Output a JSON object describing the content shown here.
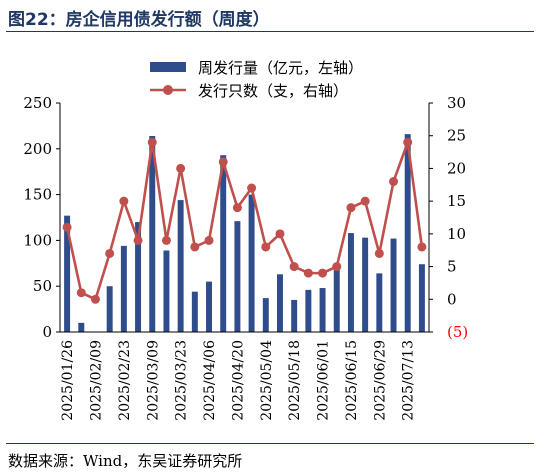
{
  "title": "图22：房企信用债发行额（周度）",
  "source": "数据来源：Wind，东吴证券研究所",
  "chart_data": {
    "type": "bar+line",
    "title": "房企信用债发行额（周度）",
    "legend_position": "top-right",
    "series": [
      {
        "name": "周发行量（亿元，左轴）",
        "type": "bar",
        "axis": "left",
        "color": "#2e4d8a",
        "values": [
          127,
          10,
          0,
          50,
          94,
          120,
          214,
          89,
          144,
          44,
          55,
          193,
          121,
          150,
          37,
          63,
          35,
          46,
          48,
          75,
          108,
          103,
          64,
          102,
          216,
          74
        ]
      },
      {
        "name": "发行只数（支，右轴）",
        "type": "line",
        "axis": "right",
        "color": "#c0504d",
        "values": [
          11,
          1,
          0,
          7,
          15,
          9,
          24,
          9,
          20,
          8,
          9,
          21,
          14,
          17,
          8,
          10,
          5,
          4,
          4,
          5,
          14,
          15,
          7,
          18,
          24,
          8
        ]
      }
    ],
    "x_tick_labels": [
      "2025/01/26",
      "2025/02/09",
      "2025/02/23",
      "2025/03/09",
      "2025/03/23",
      "2025/04/06",
      "2025/04/20",
      "2025/05/04",
      "2025/05/18",
      "2025/06/01",
      "2025/06/15",
      "2025/06/29",
      "2025/07/13"
    ],
    "y_left": {
      "min": 0,
      "max": 250,
      "ticks": [
        "0",
        "50",
        "100",
        "150",
        "200",
        "250"
      ]
    },
    "y_right": {
      "min": -5,
      "max": 30,
      "ticks": [
        "(5)",
        "0",
        "5",
        "10",
        "15",
        "20",
        "25",
        "30"
      ],
      "negative_tick_color": "#ff0000"
    }
  }
}
